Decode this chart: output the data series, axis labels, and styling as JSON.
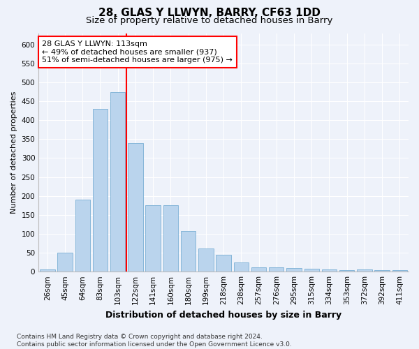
{
  "title": "28, GLAS Y LLWYN, BARRY, CF63 1DD",
  "subtitle": "Size of property relative to detached houses in Barry",
  "xlabel": "Distribution of detached houses by size in Barry",
  "ylabel": "Number of detached properties",
  "categories": [
    "26sqm",
    "45sqm",
    "64sqm",
    "83sqm",
    "103sqm",
    "122sqm",
    "141sqm",
    "160sqm",
    "180sqm",
    "199sqm",
    "218sqm",
    "238sqm",
    "257sqm",
    "276sqm",
    "295sqm",
    "315sqm",
    "334sqm",
    "353sqm",
    "372sqm",
    "392sqm",
    "411sqm"
  ],
  "values": [
    5,
    50,
    190,
    430,
    475,
    340,
    175,
    175,
    107,
    62,
    44,
    24,
    12,
    12,
    9,
    7,
    5,
    4,
    5,
    4,
    4
  ],
  "bar_color": "#bad4ed",
  "bar_edge_color": "#7aafd4",
  "vline_x": 4.5,
  "vline_color": "red",
  "annotation_text": "28 GLAS Y LLWYN: 113sqm\n← 49% of detached houses are smaller (937)\n51% of semi-detached houses are larger (975) →",
  "annotation_box_color": "white",
  "annotation_box_edge_color": "red",
  "footer": "Contains HM Land Registry data © Crown copyright and database right 2024.\nContains public sector information licensed under the Open Government Licence v3.0.",
  "ylim": [
    0,
    630
  ],
  "yticks": [
    0,
    50,
    100,
    150,
    200,
    250,
    300,
    350,
    400,
    450,
    500,
    550,
    600
  ],
  "bg_color": "#eef2fa",
  "grid_color": "white",
  "title_fontsize": 11,
  "subtitle_fontsize": 9.5,
  "xlabel_fontsize": 9,
  "ylabel_fontsize": 8,
  "tick_fontsize": 7.5,
  "footer_fontsize": 6.5,
  "annotation_fontsize": 8
}
